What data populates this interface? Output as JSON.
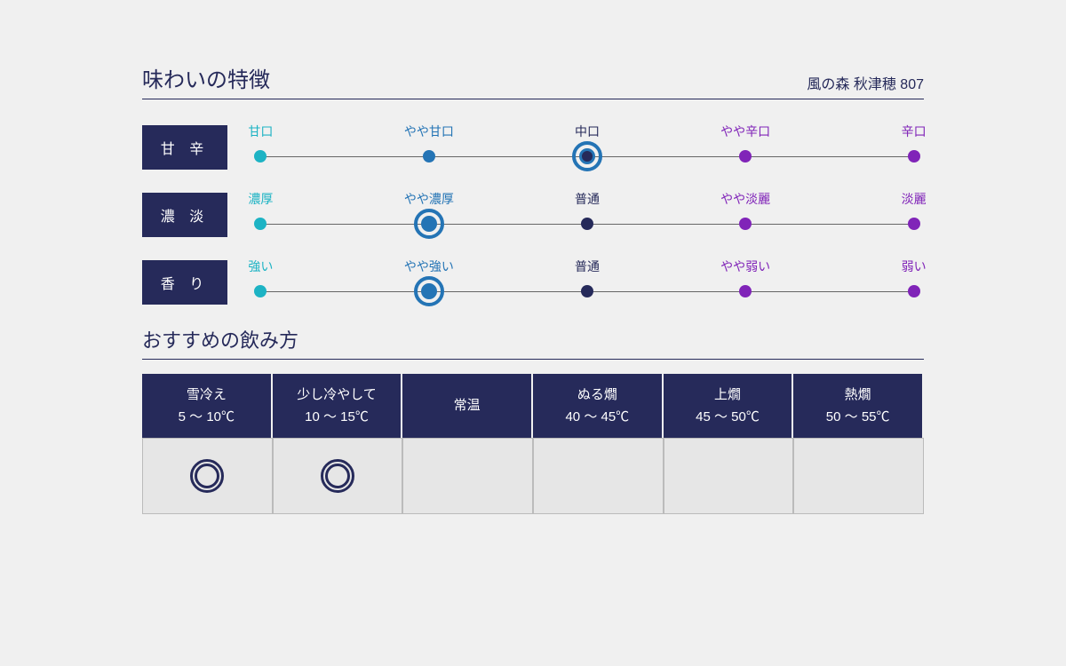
{
  "product_name": "風の森 秋津穂 807",
  "flavor_section_title": "味わいの特徴",
  "temp_section_title": "おすすめの飲み方",
  "colors": {
    "navy": "#262a5a",
    "ring": "#2474b5",
    "stop_colors": [
      "#1db3c4",
      "#2474b5",
      "#262a5a",
      "#8024b8",
      "#8024b8"
    ]
  },
  "flavor_rows": [
    {
      "tag": "甘 辛",
      "stops": [
        "甘口",
        "やや甘口",
        "中口",
        "やや辛口",
        "辛口"
      ],
      "selected_index": 2
    },
    {
      "tag": "濃 淡",
      "stops": [
        "濃厚",
        "やや濃厚",
        "普通",
        "やや淡麗",
        "淡麗"
      ],
      "selected_index": 1
    },
    {
      "tag": "香 り",
      "stops": [
        "強い",
        "やや強い",
        "普通",
        "やや弱い",
        "弱い"
      ],
      "selected_index": 1
    }
  ],
  "stop_positions_pct": [
    1.5,
    26.5,
    50,
    73.5,
    98.5
  ],
  "temperatures": [
    {
      "name": "雪冷え",
      "range": "5 ～ 10℃",
      "recommended": true
    },
    {
      "name": "少し冷やして",
      "range": "10 ～ 15℃",
      "recommended": true
    },
    {
      "name": "常温",
      "range": "",
      "recommended": false
    },
    {
      "name": "ぬる燗",
      "range": "40 ～ 45℃",
      "recommended": false
    },
    {
      "name": "上燗",
      "range": "45 ～ 50℃",
      "recommended": false
    },
    {
      "name": "熱燗",
      "range": "50 ～ 55℃",
      "recommended": false
    }
  ]
}
